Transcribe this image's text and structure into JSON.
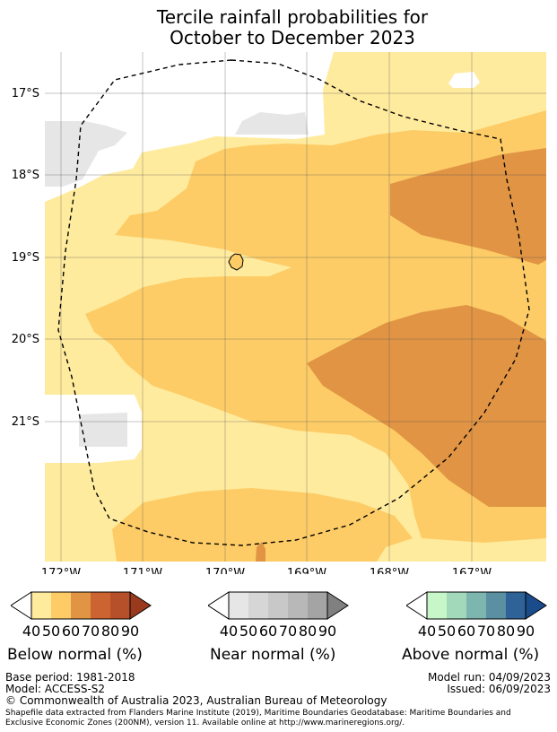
{
  "title": {
    "line1": "Tercile rainfall probabilities for",
    "line2": "October to December 2023"
  },
  "map": {
    "latitude_labels": [
      "17°S",
      "18°S",
      "19°S",
      "20°S",
      "21°S"
    ],
    "longitude_labels": [
      "172°W",
      "171°W",
      "170°W",
      "169°W",
      "168°W",
      "167°W"
    ],
    "colors": {
      "below_40_50": "#ffeb9e",
      "below_50_60": "#fdcc66",
      "below_60_70": "#e09444",
      "near_40_50": "#e6e6e6",
      "boundary": "#000000"
    }
  },
  "colorbars": [
    {
      "title": "Below normal (%)",
      "ticks": [
        "40",
        "50",
        "60",
        "70",
        "80",
        "90"
      ],
      "colors": [
        "#ffffff",
        "#ffeb9e",
        "#fdcc66",
        "#e09444",
        "#cb6431",
        "#b5502b",
        "#993a1f"
      ]
    },
    {
      "title": "Near normal (%)",
      "ticks": [
        "40",
        "50",
        "60",
        "70",
        "80",
        "90"
      ],
      "colors": [
        "#ffffff",
        "#e6e6e6",
        "#d6d6d6",
        "#c8c8c8",
        "#b8b8b8",
        "#a4a4a4",
        "#808080"
      ]
    },
    {
      "title": "Above normal (%)",
      "ticks": [
        "40",
        "50",
        "60",
        "70",
        "80",
        "90"
      ],
      "colors": [
        "#ffffff",
        "#c7f7c8",
        "#a2d9bb",
        "#7db6af",
        "#5b8fa2",
        "#2f6296",
        "#1a4b8a"
      ]
    }
  ],
  "footer": {
    "base_period": "Base period: 1981-2018",
    "model": "Model: ACCESS-S2",
    "model_run": "Model run: 04/09/2023",
    "issued": "Issued: 06/09/2023",
    "copyright": "© Commonwealth of Australia 2023, Australian Bureau of Meteorology",
    "shapefile_line1": "Shapefile data extracted from Flanders Marine Institute (2019), Maritime Boundaries Geodatabase: Maritime Boundaries and",
    "shapefile_line2": "Exclusive Economic Zones (200NM), version 11. Available online at http://www.marineregions.org/."
  }
}
